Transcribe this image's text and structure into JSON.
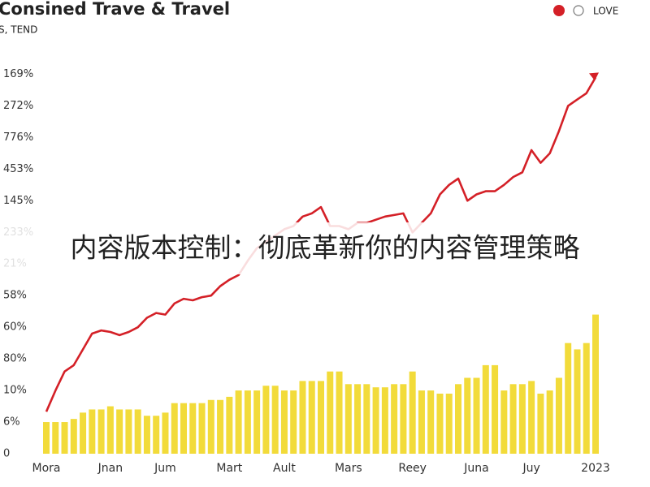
{
  "chart_data": {
    "type": "bar-line",
    "title": "Consined Trave & Travel",
    "subtitle": "S, TEND",
    "overlay_text": "内容版本控制：彻底革新你的内容管理策略",
    "categories": [
      "Mora",
      null,
      null,
      null,
      null,
      null,
      null,
      "Jnan",
      null,
      null,
      null,
      null,
      null,
      "Jum",
      null,
      null,
      null,
      null,
      null,
      null,
      "Mart",
      null,
      null,
      null,
      null,
      null,
      "Ault",
      null,
      null,
      null,
      null,
      null,
      null,
      "Mars",
      null,
      null,
      null,
      null,
      null,
      null,
      "Reey",
      null,
      null,
      null,
      null,
      null,
      null,
      "Juna",
      null,
      null,
      null,
      null,
      null,
      "Juy",
      null,
      null,
      null,
      null,
      null,
      null,
      "2023"
    ],
    "series": [
      {
        "type": "bar",
        "color": "#f2db3a",
        "values": [
          1.0,
          1.0,
          1.0,
          1.1,
          1.3,
          1.4,
          1.4,
          1.5,
          1.4,
          1.4,
          1.4,
          1.2,
          1.2,
          1.3,
          1.6,
          1.6,
          1.6,
          1.6,
          1.7,
          1.7,
          1.8,
          2.0,
          2.0,
          2.0,
          2.15,
          2.15,
          2.0,
          2.0,
          2.3,
          2.3,
          2.3,
          2.6,
          2.6,
          2.2,
          2.2,
          2.2,
          2.1,
          2.1,
          2.2,
          2.2,
          2.6,
          2.0,
          2.0,
          1.9,
          1.9,
          2.2,
          2.4,
          2.4,
          2.8,
          2.8,
          2.0,
          2.2,
          2.2,
          2.3,
          1.9,
          2.0,
          2.4,
          3.5,
          3.3,
          3.5,
          4.4
        ]
      },
      {
        "type": "line",
        "name": "LOVE",
        "color": "#d42027",
        "values": [
          1.33,
          2.0,
          2.6,
          2.8,
          3.3,
          3.8,
          3.9,
          3.85,
          3.75,
          3.85,
          4.0,
          4.3,
          4.45,
          4.4,
          4.75,
          4.9,
          4.85,
          4.95,
          5.0,
          5.3,
          5.5,
          5.65,
          6.1,
          6.5,
          6.7,
          6.9,
          7.1,
          7.2,
          7.5,
          7.6,
          7.8,
          7.2,
          7.2,
          7.1,
          7.3,
          7.3,
          7.4,
          7.5,
          7.55,
          7.6,
          7.0,
          7.3,
          7.6,
          8.2,
          8.5,
          8.7,
          8.0,
          8.2,
          8.3,
          8.3,
          8.5,
          8.75,
          8.9,
          9.6,
          9.2,
          9.5,
          10.2,
          11.0,
          11.2,
          11.4,
          11.9
        ]
      }
    ],
    "ylim": [
      0,
      12.5
    ],
    "yticks": [
      0,
      {
        "value": 1,
        "label": "6%"
      },
      {
        "value": 2,
        "label": "10%"
      },
      {
        "value": 3,
        "label": "80%"
      },
      {
        "value": 4,
        "label": "60%"
      },
      {
        "value": 5,
        "label": "58%"
      },
      {
        "value": 6,
        "label": "21%"
      },
      {
        "value": 7,
        "label": "233%"
      },
      {
        "value": 8,
        "label": "145%"
      },
      {
        "value": 9,
        "label": "453%"
      },
      {
        "value": 10,
        "label": "776%"
      },
      {
        "value": 11,
        "label": "272%"
      },
      {
        "value": 12,
        "label": "169%"
      }
    ]
  }
}
